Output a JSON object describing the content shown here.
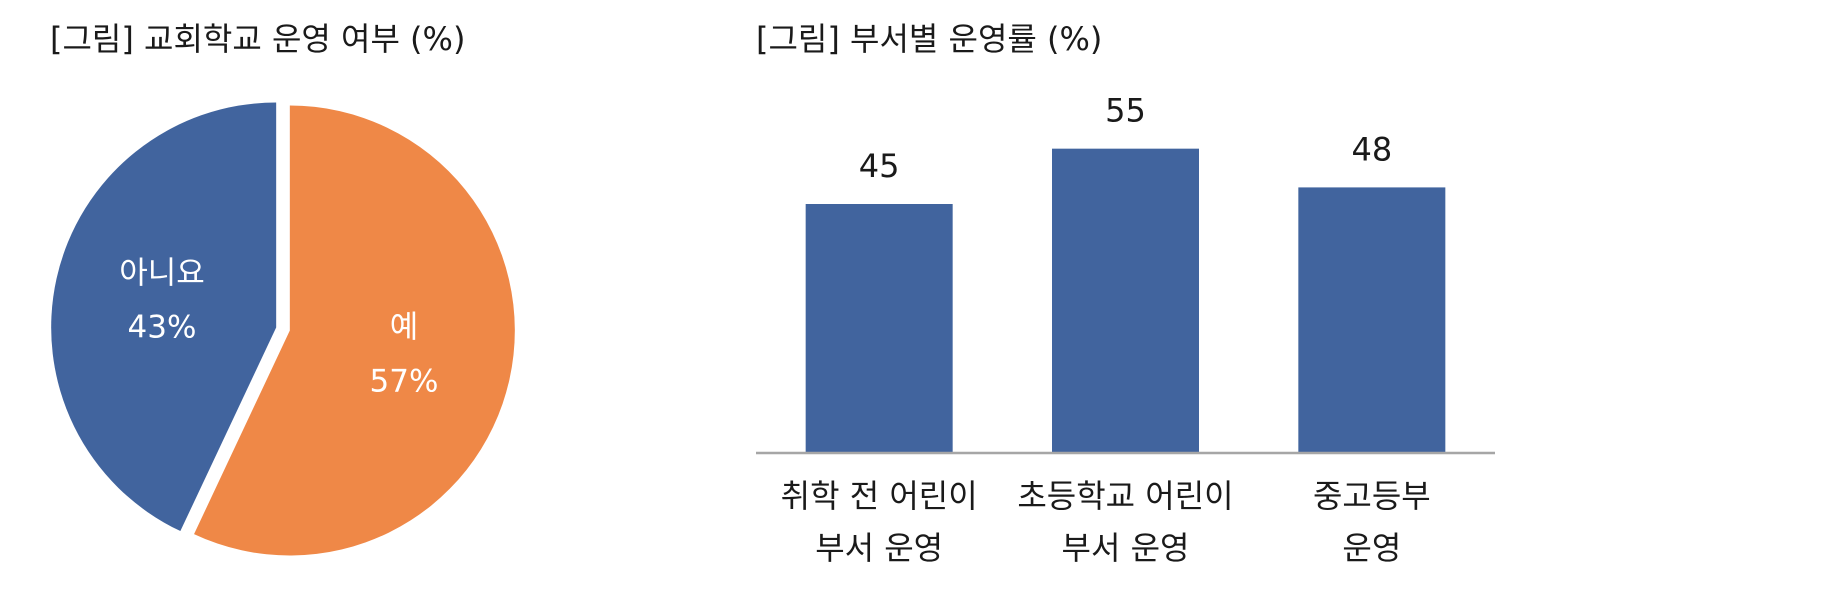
{
  "chart_data": [
    {
      "type": "pie",
      "title": "[그림] 교회학교 운영 여부 (%)",
      "categories": [
        "예",
        "아니요"
      ],
      "values": [
        57,
        43
      ],
      "value_labels": [
        "57%",
        "43%"
      ],
      "colors": [
        "#ef8847",
        "#41649e"
      ]
    },
    {
      "type": "bar",
      "title": "[그림] 부서별 운영률 (%)",
      "categories": [
        "취학 전 어린이\n부서 운영",
        "초등학교 어린이\n부서 운영",
        "중고등부\n운영"
      ],
      "values": [
        45,
        55,
        48
      ],
      "color": "#41649e",
      "ylim": [
        0,
        60
      ]
    }
  ]
}
